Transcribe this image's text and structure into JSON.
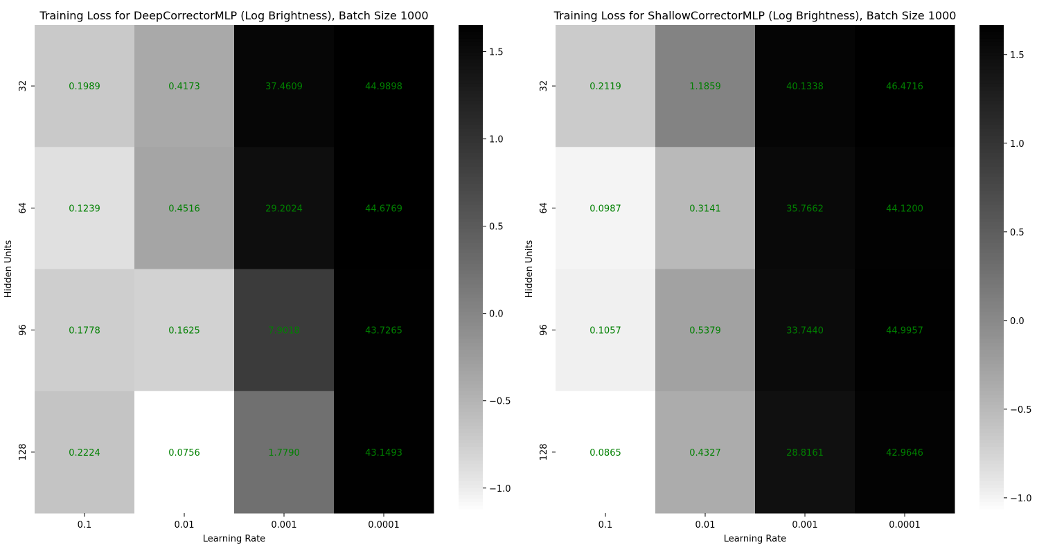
{
  "chart_data": [
    {
      "type": "heatmap",
      "title": "Training Loss for DeepCorrectorMLP (Log Brightness), Batch Size 1000",
      "xlabel": "Learning Rate",
      "ylabel": "Hidden Units",
      "x_categories": [
        "0.1",
        "0.01",
        "0.001",
        "0.0001"
      ],
      "y_categories": [
        "32",
        "64",
        "96",
        "128"
      ],
      "values": [
        [
          0.1989,
          0.4173,
          37.4609,
          44.9898
        ],
        [
          0.1239,
          0.4516,
          29.2024,
          44.6769
        ],
        [
          0.1778,
          0.1625,
          7.9018,
          43.7265
        ],
        [
          0.2224,
          0.0756,
          1.779,
          43.1493
        ]
      ],
      "cell_labels": [
        [
          "0.1989",
          "0.4173",
          "37.4609",
          "44.9898"
        ],
        [
          "0.1239",
          "0.4516",
          "29.2024",
          "44.6769"
        ],
        [
          "0.1778",
          "0.1625",
          "7.9018",
          "43.7265"
        ],
        [
          "0.2224",
          "0.0756",
          "1.7790",
          "43.1493"
        ]
      ],
      "color_scale": "log10",
      "colormap": "Greys",
      "colorbar": {
        "range": [
          -1.12,
          1.653
        ],
        "ticks": [
          1.5,
          1.0,
          0.5,
          0.0,
          -0.5,
          -1.0
        ],
        "tick_labels": [
          "1.5",
          "1.0",
          "0.5",
          "0.0",
          "−0.5",
          "−1.0"
        ]
      },
      "annotation_color": "#008000",
      "grid": false
    },
    {
      "type": "heatmap",
      "title": "Training Loss for ShallowCorrectorMLP (Log Brightness), Batch Size 1000",
      "xlabel": "Learning Rate",
      "ylabel": "Hidden Units",
      "x_categories": [
        "0.1",
        "0.01",
        "0.001",
        "0.0001"
      ],
      "y_categories": [
        "32",
        "64",
        "96",
        "128"
      ],
      "values": [
        [
          0.2119,
          1.1859,
          40.1338,
          46.4716
        ],
        [
          0.0987,
          0.3141,
          35.7662,
          44.12
        ],
        [
          0.1057,
          0.5379,
          33.744,
          44.9957
        ],
        [
          0.0865,
          0.4327,
          28.8161,
          42.9646
        ]
      ],
      "cell_labels": [
        [
          "0.2119",
          "1.1859",
          "40.1338",
          "46.4716"
        ],
        [
          "0.0987",
          "0.3141",
          "35.7662",
          "44.1200"
        ],
        [
          "0.1057",
          "0.5379",
          "33.7440",
          "44.9957"
        ],
        [
          "0.0865",
          "0.4327",
          "28.8161",
          "42.9646"
        ]
      ],
      "color_scale": "log10",
      "colormap": "Greys",
      "colorbar": {
        "range": [
          -1.063,
          1.667
        ],
        "ticks": [
          1.5,
          1.0,
          0.5,
          0.0,
          -0.5,
          -1.0
        ],
        "tick_labels": [
          "1.5",
          "1.0",
          "0.5",
          "0.0",
          "−0.5",
          "−1.0"
        ]
      },
      "annotation_color": "#008000",
      "grid": false
    }
  ]
}
